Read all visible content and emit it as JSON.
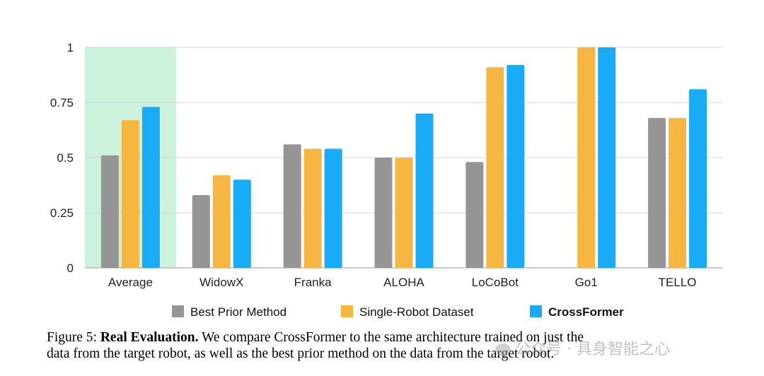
{
  "chart_data": {
    "type": "bar",
    "categories": [
      "Average",
      "WidowX",
      "Franka",
      "ALOHA",
      "LoCoBot",
      "Go1",
      "TELLO"
    ],
    "series": [
      {
        "name": "Best Prior Method",
        "values": [
          0.51,
          0.33,
          0.56,
          0.5,
          0.48,
          0.0,
          0.68
        ],
        "color": "#959595"
      },
      {
        "name": "Single-Robot Dataset",
        "values": [
          0.67,
          0.42,
          0.54,
          0.5,
          0.91,
          1.0,
          0.68
        ],
        "color": "#F5B642"
      },
      {
        "name": "CrossFormer",
        "values": [
          0.73,
          0.4,
          0.54,
          0.7,
          0.92,
          1.0,
          0.81
        ],
        "color": "#1AABF7"
      }
    ],
    "yticks": [
      "0",
      "0.25",
      "0.5",
      "0.75",
      "1"
    ],
    "ylim": [
      0,
      1
    ],
    "grid": true,
    "highlight_category": "Average",
    "highlight_color": "#CDF2DB",
    "legend_position": "bottom"
  },
  "caption": {
    "prefix": "Figure 5: ",
    "bold": "Real Evaluation.",
    "line1": " We compare CrossFormer to the same architecture trained on just the",
    "line2": "data from the target robot, as well as the best prior method on the data from the target robot."
  },
  "watermark": "公众号 · 具身智能之心"
}
